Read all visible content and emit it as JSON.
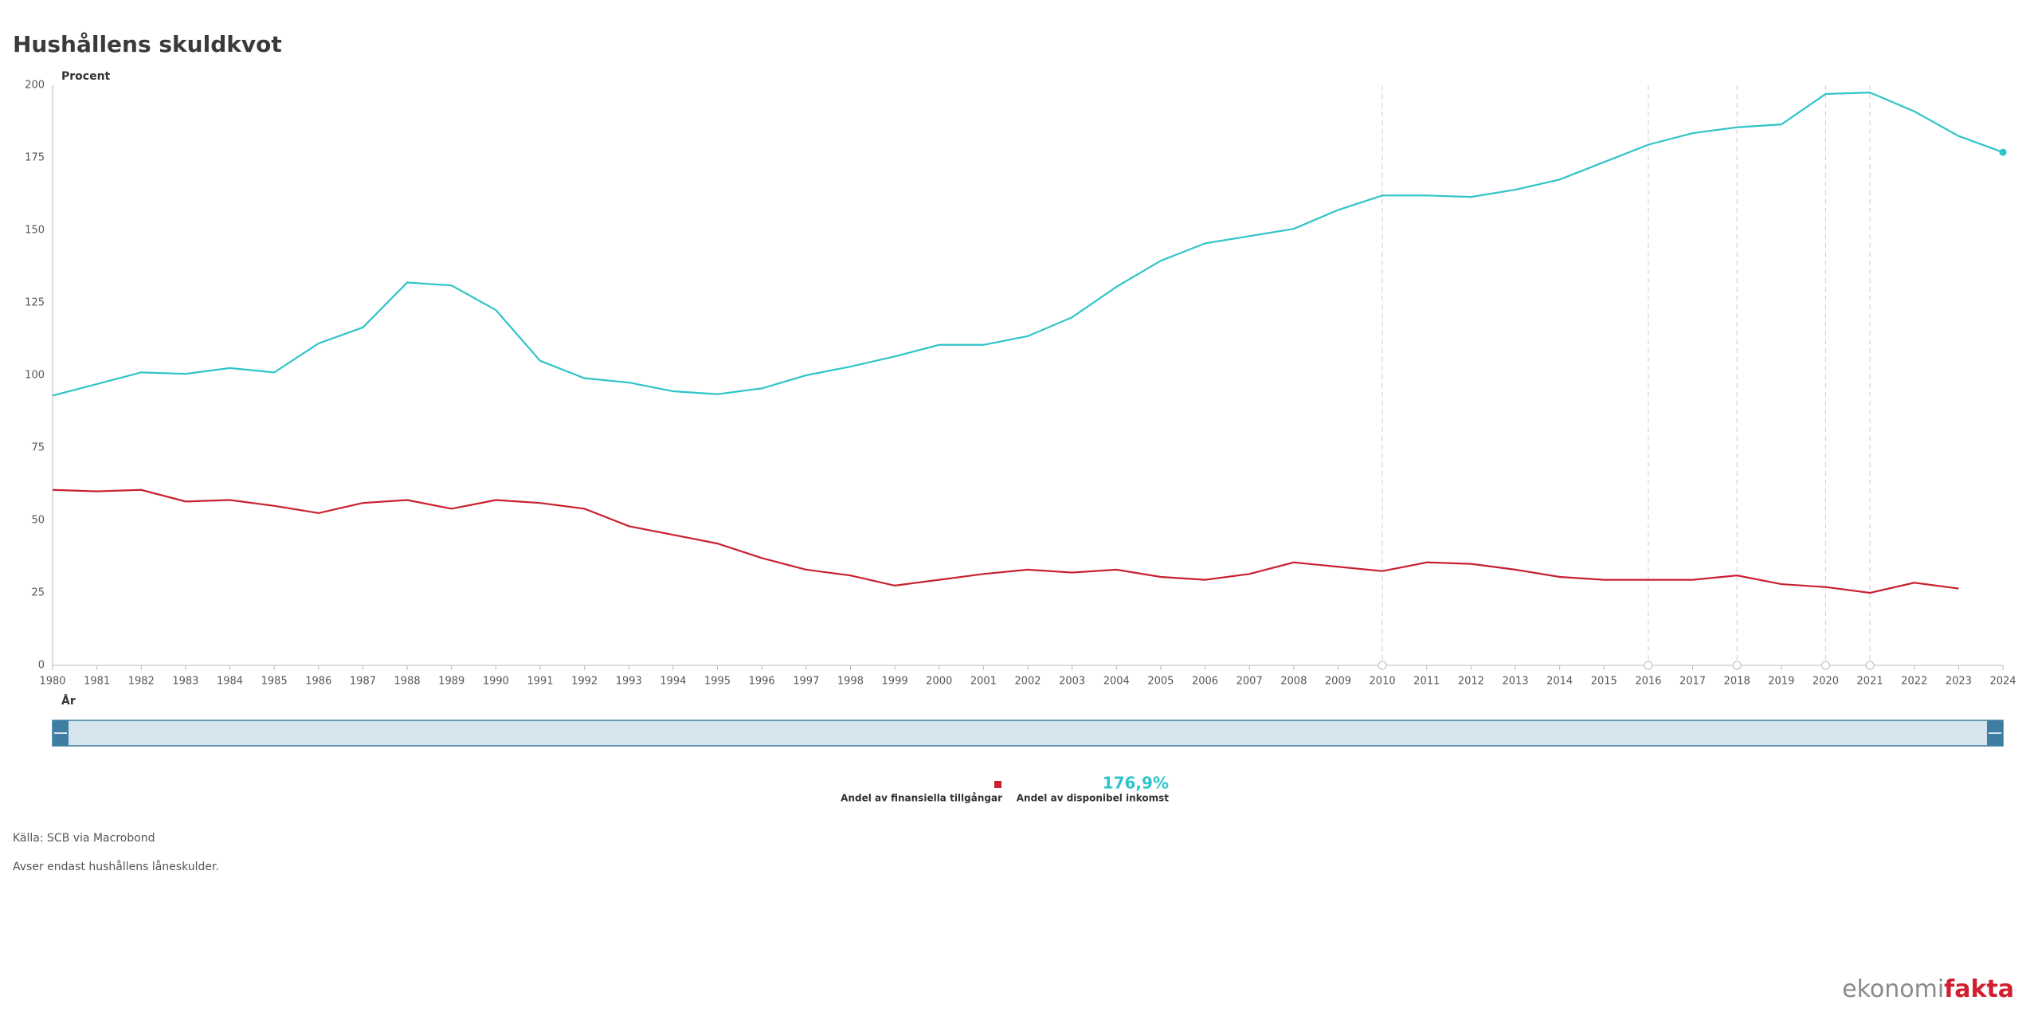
{
  "chart_data": {
    "type": "line",
    "title": "Hushållens skuldkvot",
    "y_label": "Procent",
    "x_label": "År",
    "x": [
      1980,
      1981,
      1982,
      1983,
      1984,
      1985,
      1986,
      1987,
      1988,
      1989,
      1990,
      1991,
      1992,
      1993,
      1994,
      1995,
      1996,
      1997,
      1998,
      1999,
      2000,
      2001,
      2002,
      2003,
      2004,
      2005,
      2006,
      2007,
      2008,
      2009,
      2010,
      2011,
      2012,
      2013,
      2014,
      2015,
      2016,
      2017,
      2018,
      2019,
      2020,
      2021,
      2022,
      2023,
      2024
    ],
    "xlim": [
      1980,
      2024
    ],
    "ylim": [
      0,
      200
    ],
    "yticks": [
      0,
      25,
      50,
      75,
      100,
      125,
      150,
      175,
      200
    ],
    "event_markers_x": [
      2010,
      2016,
      2018,
      2020,
      2021
    ],
    "series": [
      {
        "name": "Andel av finansiella tillgångar",
        "color": "#c8202f",
        "values": [
          60.5,
          60,
          60.5,
          56.5,
          57,
          55,
          52.5,
          56,
          57,
          54,
          57,
          56,
          54,
          48,
          45,
          42,
          37,
          33,
          31,
          27.5,
          29.5,
          31.5,
          33,
          32,
          33,
          30.5,
          29.5,
          31.5,
          35.5,
          34,
          32.5,
          35.5,
          35,
          33,
          30.5,
          29.5,
          29.5,
          29.5,
          31,
          28,
          27,
          25,
          28.5,
          26.5,
          null
        ]
      },
      {
        "name": "Andel av disponibel inkomst",
        "color": "#2fc4c9",
        "values": [
          93,
          97,
          101,
          100.5,
          102.5,
          101,
          111,
          116.5,
          132,
          131,
          122.5,
          105,
          99,
          97.5,
          94.5,
          93.5,
          95.5,
          100,
          103,
          106.5,
          110.5,
          110.5,
          113.5,
          120,
          130.5,
          139.5,
          145.5,
          148,
          150.5,
          157,
          162,
          162,
          161.5,
          164,
          167.5,
          173.5,
          179.5,
          183.5,
          185.5,
          186.5,
          197,
          197.5,
          191,
          182.5,
          176.9
        ],
        "last_value_label": "176,9%"
      }
    ],
    "source": "Källa: SCB via Macrobond",
    "note": "Avser endast hushållens låneskulder.",
    "brand": {
      "part1": "ekonomi",
      "part2": "fakta"
    }
  }
}
